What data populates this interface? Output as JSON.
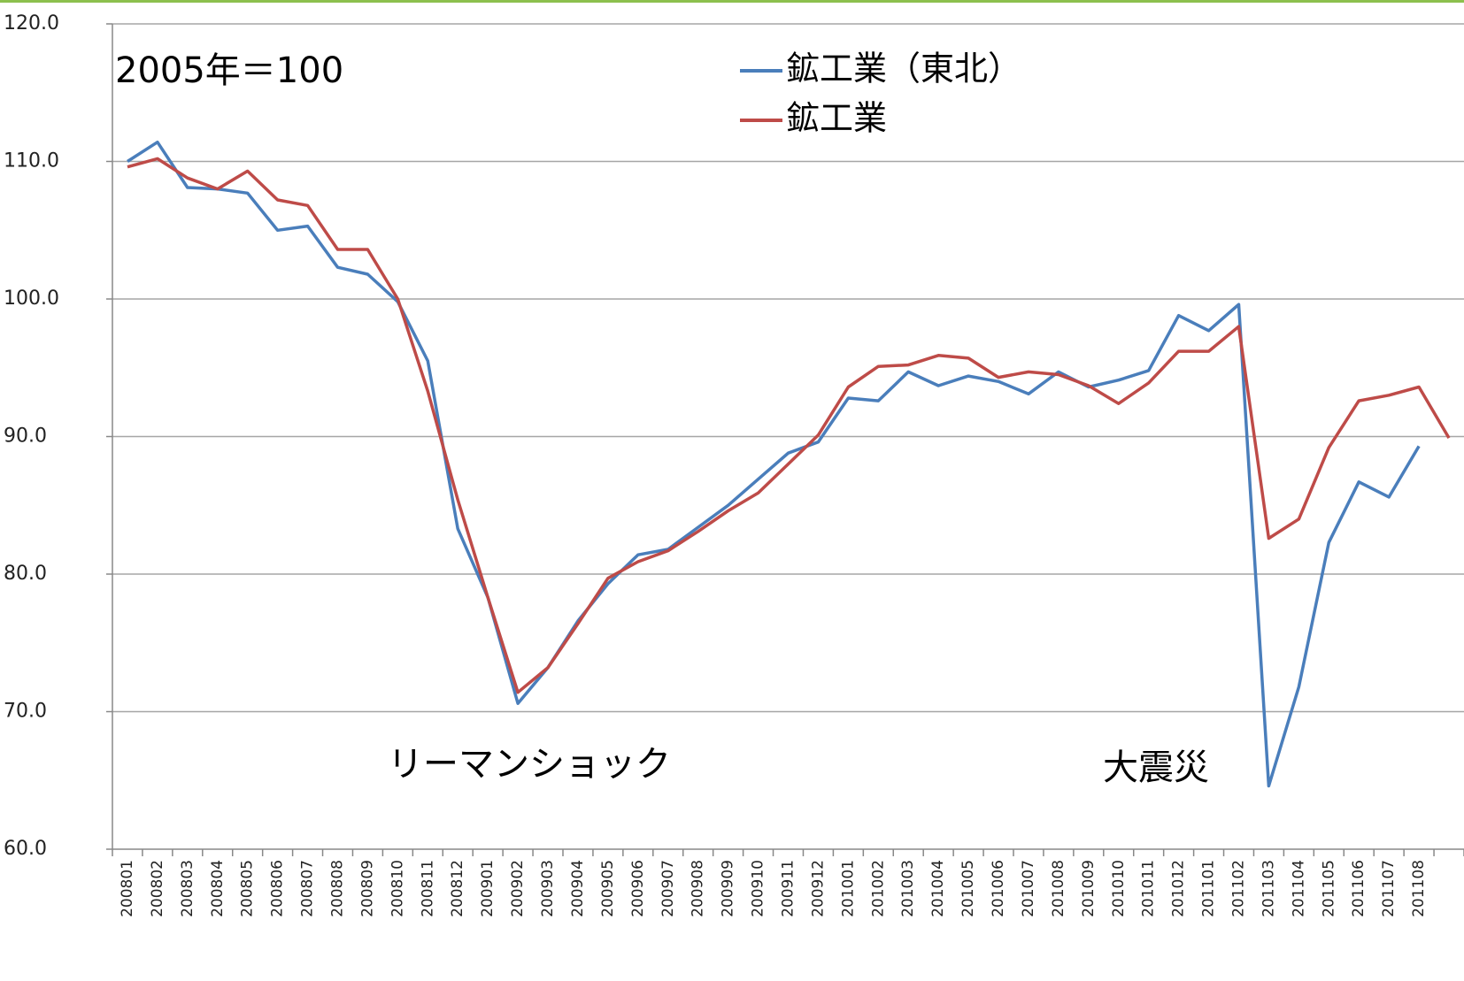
{
  "chart_data": {
    "type": "line",
    "annotations": [
      "2005年＝100",
      "リーマンショック",
      "大震災"
    ],
    "categories": [
      "200801",
      "200802",
      "200803",
      "200804",
      "200805",
      "200806",
      "200807",
      "200808",
      "200809",
      "200810",
      "200811",
      "200812",
      "200901",
      "200902",
      "200903",
      "200904",
      "200905",
      "200906",
      "200907",
      "200908",
      "200909",
      "200910",
      "200911",
      "200912",
      "201001",
      "201002",
      "201003",
      "201004",
      "201005",
      "201006",
      "201007",
      "201008",
      "201009",
      "201010",
      "201011",
      "201012",
      "201101",
      "201102",
      "201103",
      "201104",
      "201105",
      "201106",
      "201107",
      "201108",
      null
    ],
    "series": [
      {
        "name": "鉱工業（東北）",
        "color": "#4a7ebb",
        "values": [
          110.0,
          111.4,
          108.1,
          108.0,
          107.7,
          105.0,
          105.3,
          102.3,
          101.8,
          99.8,
          95.5,
          83.3,
          78.3,
          70.6,
          73.2,
          76.6,
          79.3,
          81.4,
          81.8,
          83.4,
          85.0,
          86.9,
          88.8,
          89.6,
          92.8,
          92.6,
          94.7,
          93.7,
          94.4,
          94.0,
          93.1,
          94.7,
          93.6,
          94.1,
          94.8,
          98.8,
          97.7,
          99.6,
          64.6,
          71.8,
          82.3,
          86.7,
          85.6,
          89.3,
          null
        ]
      },
      {
        "name": "鉱工業",
        "color": "#be4b48",
        "values": [
          109.6,
          110.2,
          108.8,
          108.0,
          109.3,
          107.2,
          106.8,
          103.6,
          103.6,
          100.0,
          93.3,
          85.4,
          78.3,
          71.4,
          73.2,
          76.4,
          79.7,
          80.9,
          81.7,
          83.1,
          84.6,
          85.9,
          88.0,
          90.1,
          93.6,
          95.1,
          95.2,
          95.9,
          95.7,
          94.3,
          94.7,
          94.5,
          93.7,
          92.4,
          93.9,
          96.2,
          96.2,
          98.0,
          82.6,
          84.0,
          89.2,
          92.6,
          93.0,
          93.6,
          89.9
        ]
      }
    ],
    "ylim": [
      60,
      120
    ],
    "yticks": [
      {
        "value": 60,
        "label": "60.0"
      },
      {
        "value": 70,
        "label": "70.0"
      },
      {
        "value": 80,
        "label": "80.0"
      },
      {
        "value": 90,
        "label": "90.0"
      },
      {
        "value": 100,
        "label": "100.0"
      },
      {
        "value": 110,
        "label": "110.0"
      },
      {
        "value": 120,
        "label": "120.0"
      }
    ],
    "grid": true,
    "legend": "top"
  }
}
